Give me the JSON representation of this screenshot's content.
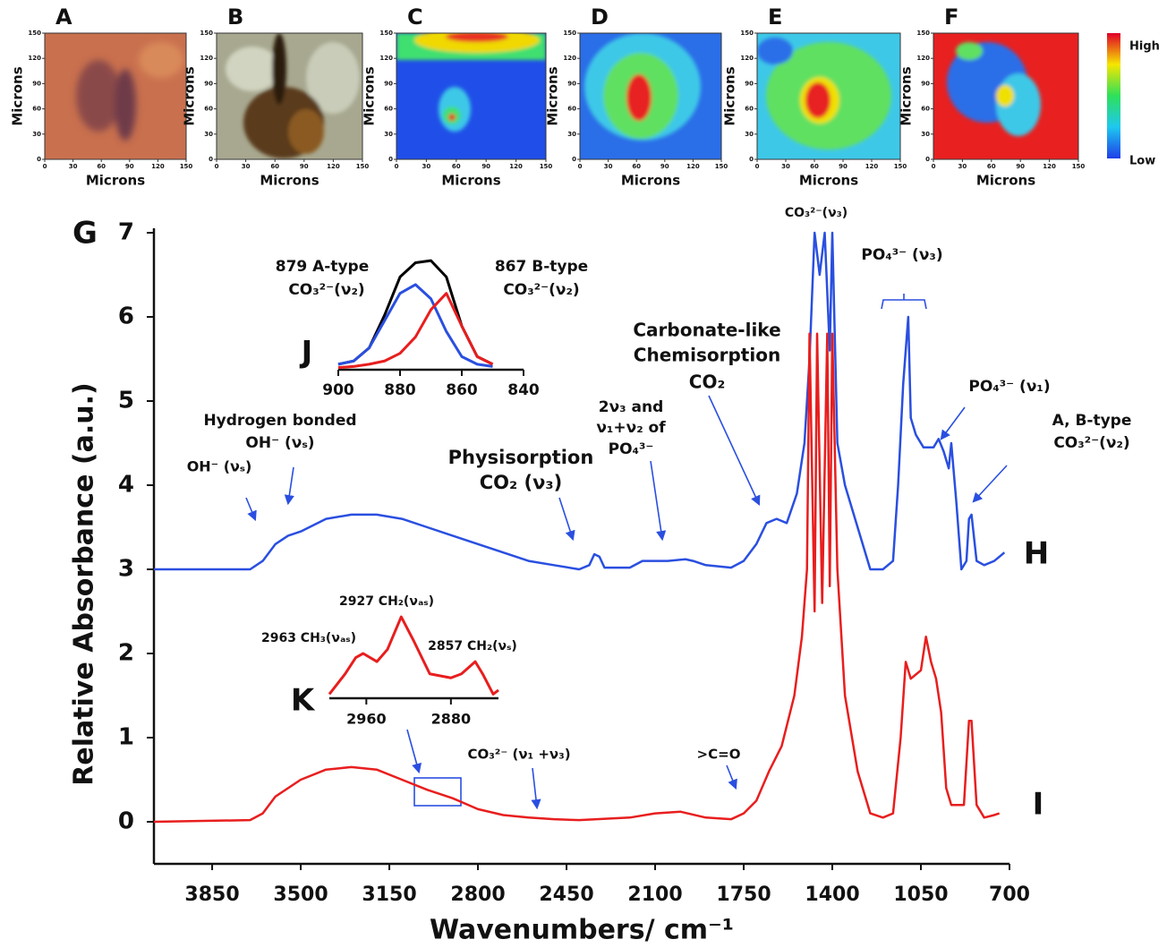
{
  "image_panels": {
    "labels": [
      "A",
      "B",
      "C",
      "D",
      "E",
      "F"
    ],
    "axis_label": "Microns",
    "xlim": [
      0,
      150
    ],
    "ylim": [
      0,
      150
    ],
    "xticks": [
      0,
      30,
      60,
      90,
      120,
      150
    ],
    "yticks": [
      0,
      30,
      60,
      90,
      120,
      150
    ],
    "colorbar": {
      "high": "High",
      "low": "Low"
    }
  },
  "chart_data": [
    {
      "type": "line",
      "label": "G",
      "xlabel": "Wavenumbers/ cm⁻¹",
      "ylabel": "Relative Absorbance (a.u.)",
      "xlim": [
        4080,
        700
      ],
      "ylim": [
        -0.5,
        7
      ],
      "xticks": [
        3850,
        3500,
        3150,
        2800,
        2450,
        2100,
        1750,
        1400,
        1050,
        700
      ],
      "yticks": [
        0,
        1,
        2,
        3,
        4,
        5,
        6,
        7
      ],
      "series": [
        {
          "name": "H",
          "color": "#2a4fe0",
          "x": [
            4080,
            3700,
            3650,
            3600,
            3550,
            3500,
            3400,
            3300,
            3200,
            3100,
            3000,
            2900,
            2800,
            2700,
            2600,
            2500,
            2400,
            2360,
            2340,
            2320,
            2300,
            2200,
            2150,
            2050,
            1980,
            1950,
            1900,
            1800,
            1750,
            1700,
            1660,
            1620,
            1580,
            1540,
            1510,
            1490,
            1470,
            1450,
            1430,
            1410,
            1400,
            1380,
            1350,
            1300,
            1250,
            1200,
            1160,
            1140,
            1120,
            1100,
            1090,
            1070,
            1040,
            1000,
            980,
            960,
            940,
            930,
            910,
            890,
            870,
            860,
            850,
            830,
            800,
            760,
            740,
            720
          ],
          "values": [
            3.0,
            3.0,
            3.1,
            3.3,
            3.4,
            3.45,
            3.6,
            3.65,
            3.65,
            3.6,
            3.5,
            3.4,
            3.3,
            3.2,
            3.1,
            3.05,
            3.0,
            3.05,
            3.18,
            3.15,
            3.02,
            3.02,
            3.1,
            3.1,
            3.12,
            3.1,
            3.05,
            3.02,
            3.1,
            3.3,
            3.55,
            3.6,
            3.55,
            3.9,
            4.5,
            5.5,
            7.0,
            6.5,
            7.0,
            5.6,
            7.0,
            4.5,
            4.0,
            3.5,
            3.0,
            3.0,
            3.1,
            4.0,
            5.2,
            6.0,
            4.8,
            4.6,
            4.45,
            4.45,
            4.55,
            4.4,
            4.2,
            4.5,
            3.8,
            3.0,
            3.1,
            3.6,
            3.65,
            3.1,
            3.05,
            3.1,
            3.15,
            3.2
          ]
        },
        {
          "name": "I",
          "color": "#e81e1e",
          "x": [
            4080,
            3700,
            3650,
            3600,
            3500,
            3400,
            3300,
            3200,
            3100,
            3000,
            2900,
            2800,
            2700,
            2600,
            2500,
            2400,
            2200,
            2100,
            2000,
            1900,
            1800,
            1750,
            1700,
            1650,
            1600,
            1550,
            1520,
            1500,
            1490,
            1470,
            1460,
            1440,
            1420,
            1410,
            1400,
            1380,
            1350,
            1300,
            1250,
            1200,
            1160,
            1130,
            1110,
            1090,
            1070,
            1050,
            1030,
            1010,
            990,
            970,
            950,
            930,
            880,
            860,
            850,
            830,
            800,
            760,
            740
          ],
          "values": [
            0.0,
            0.02,
            0.1,
            0.3,
            0.5,
            0.62,
            0.65,
            0.62,
            0.5,
            0.38,
            0.28,
            0.15,
            0.08,
            0.05,
            0.03,
            0.02,
            0.05,
            0.1,
            0.12,
            0.05,
            0.03,
            0.1,
            0.25,
            0.6,
            0.9,
            1.5,
            2.2,
            3.0,
            5.8,
            2.5,
            5.8,
            2.6,
            5.8,
            2.8,
            5.8,
            3.0,
            1.5,
            0.6,
            0.1,
            0.05,
            0.1,
            1.0,
            1.9,
            1.7,
            1.75,
            1.8,
            2.2,
            1.9,
            1.7,
            1.3,
            0.4,
            0.2,
            0.2,
            1.2,
            1.2,
            0.2,
            0.05,
            0.08,
            0.1
          ]
        }
      ],
      "annotations": [
        "CO₃²⁻(ν₃)",
        "PO₄³⁻ (ν₃)",
        "Carbonate-like",
        "Chemisorption",
        "CO₂",
        "PO₄³⁻ (ν₁)",
        "A, B-type",
        "CO₃²⁻(ν₂)",
        "2ν₃ and",
        "ν₁+ν₂ of",
        "PO₄³⁻",
        "Physisorption",
        "CO₂ (ν₃)",
        "Hydrogen bonded",
        "OH⁻ (νₛ)",
        "OH⁻ (νₛ)",
        "CO₃²⁻ (ν₁ +ν₃)",
        ">C=O"
      ]
    },
    {
      "type": "line",
      "label": "J",
      "xlim": [
        900,
        840
      ],
      "ylim": [
        0,
        1.05
      ],
      "xticks": [
        900,
        880,
        860,
        840
      ],
      "series": [
        {
          "color": "#000000",
          "x": [
            900,
            895,
            890,
            885,
            880,
            875,
            870,
            865,
            860,
            855,
            850
          ],
          "values": [
            0.05,
            0.08,
            0.2,
            0.5,
            0.85,
            0.98,
            1.0,
            0.85,
            0.4,
            0.12,
            0.05
          ]
        },
        {
          "name": "879 A-type",
          "sublabel": "CO₃²⁻(ν₂)",
          "color": "#2a4fe0",
          "x": [
            900,
            895,
            890,
            885,
            880,
            875,
            870,
            865,
            860,
            855,
            850
          ],
          "values": [
            0.05,
            0.08,
            0.2,
            0.45,
            0.7,
            0.78,
            0.65,
            0.35,
            0.12,
            0.05,
            0.03
          ]
        },
        {
          "name": "867 B-type",
          "sublabel": "CO₃²⁻(ν₂)",
          "color": "#e81e1e",
          "x": [
            900,
            895,
            890,
            885,
            880,
            875,
            870,
            865,
            860,
            855,
            850
          ],
          "values": [
            0.02,
            0.03,
            0.05,
            0.08,
            0.15,
            0.3,
            0.55,
            0.7,
            0.4,
            0.12,
            0.05
          ]
        }
      ]
    },
    {
      "type": "line",
      "label": "K",
      "xlim": [
        2995,
        2835
      ],
      "ylim": [
        0,
        1.1
      ],
      "xticks": [
        2960,
        2880
      ],
      "series": [
        {
          "color": "#e81e1e",
          "x": [
            2995,
            2980,
            2970,
            2963,
            2950,
            2940,
            2927,
            2915,
            2900,
            2880,
            2870,
            2857,
            2850,
            2840,
            2835
          ],
          "values": [
            0.05,
            0.3,
            0.5,
            0.55,
            0.45,
            0.6,
            1.0,
            0.7,
            0.3,
            0.25,
            0.3,
            0.45,
            0.3,
            0.05,
            0.1
          ]
        }
      ],
      "annotations": [
        "2927 CH₂(νₐₛ)",
        "2963 CH₃(νₐₛ)",
        "2857 CH₂(νₛ)"
      ]
    }
  ]
}
